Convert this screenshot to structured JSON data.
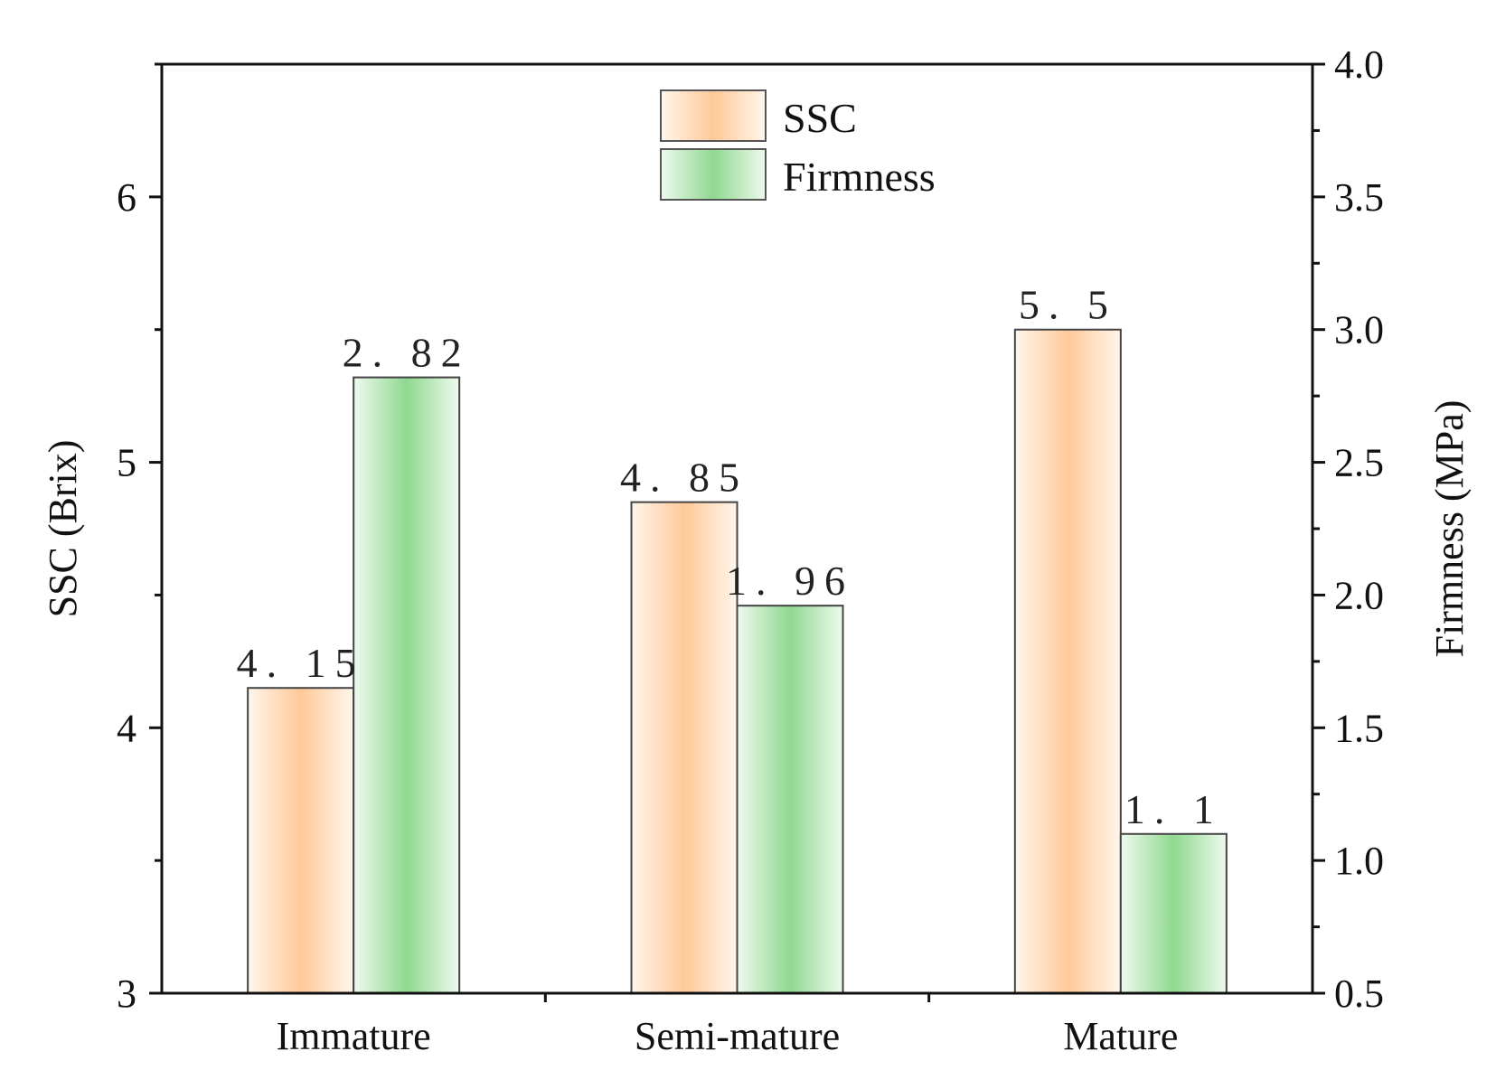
{
  "chart_data": {
    "type": "bar",
    "categories": [
      "Immature",
      "Semi-mature",
      "Mature"
    ],
    "series": [
      {
        "name": "SSC",
        "axis": "left",
        "values": [
          4.15,
          4.85,
          5.5
        ],
        "value_labels": [
          "4. 15",
          "4. 85",
          "5. 5"
        ],
        "color": "#FFC999"
      },
      {
        "name": "Firmness",
        "axis": "right",
        "values": [
          2.82,
          1.96,
          1.1
        ],
        "value_labels": [
          "2. 82",
          "1. 96",
          "1. 1"
        ],
        "color": "#90D890"
      }
    ],
    "ylabel": "SSC (Brix)",
    "ylabel_right": "Firmness (MPa)",
    "ylim": [
      3,
      6.5
    ],
    "ylim_right": [
      0.5,
      4.0
    ],
    "yticks": [
      "3",
      "4",
      "5",
      "6"
    ],
    "yticks_right": [
      "0.5",
      "1.0",
      "1.5",
      "2.0",
      "2.5",
      "3.0",
      "3.5",
      "4.0"
    ],
    "grid": false,
    "legend_position": "top-center"
  }
}
